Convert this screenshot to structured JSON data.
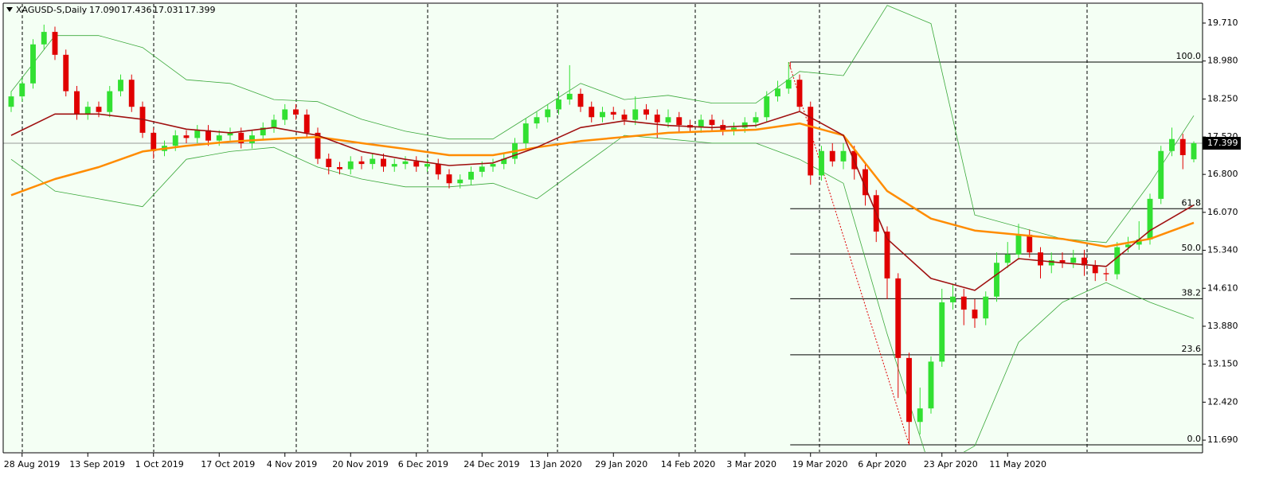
{
  "chart_data": {
    "type": "candlestick",
    "header": {
      "symbol": "XAGUSD-S,Daily",
      "ohlc": [
        "17.090",
        "17.436",
        "17.031",
        "17.399"
      ]
    },
    "categories": [
      null,
      "28 Aug 2019",
      null,
      null,
      null,
      null,
      null,
      "13 Sep 2019",
      null,
      null,
      null,
      null,
      null,
      "1 Oct 2019",
      null,
      null,
      null,
      null,
      null,
      "17 Oct 2019",
      null,
      null,
      null,
      null,
      null,
      "4 Nov 2019",
      null,
      null,
      null,
      null,
      null,
      "20 Nov 2019",
      null,
      null,
      null,
      null,
      null,
      "6 Dec 2019",
      null,
      null,
      null,
      null,
      null,
      "24 Dec 2019",
      null,
      null,
      null,
      null,
      null,
      "13 Jan 2020",
      null,
      null,
      null,
      null,
      null,
      "29 Jan 2020",
      null,
      null,
      null,
      null,
      null,
      "14 Feb 2020",
      null,
      null,
      null,
      null,
      null,
      "3 Mar 2020",
      null,
      null,
      null,
      null,
      null,
      "19 Mar 2020",
      null,
      null,
      null,
      null,
      null,
      "6 Apr 2020",
      null,
      null,
      null,
      null,
      null,
      "23 Apr 2020",
      null,
      null,
      null,
      null,
      null,
      "11 May 2020",
      null,
      null,
      null,
      null,
      null,
      null,
      null,
      null,
      null,
      null,
      null,
      null,
      null,
      null,
      null,
      null,
      null
    ],
    "candles": {
      "open": [
        18.1,
        18.3,
        18.55,
        19.3,
        19.54,
        19.1,
        18.4,
        17.95,
        18.1,
        18.0,
        18.4,
        18.62,
        18.1,
        17.6,
        17.25,
        17.35,
        17.55,
        17.5,
        17.65,
        17.45,
        17.55,
        17.6,
        17.4,
        17.55,
        17.7,
        17.85,
        18.05,
        17.95,
        17.6,
        17.1,
        16.94,
        16.9,
        17.05,
        17.0,
        17.1,
        16.95,
        17.0,
        17.05,
        16.95,
        17.0,
        16.8,
        16.63,
        16.7,
        16.85,
        16.95,
        17.0,
        17.1,
        17.4,
        17.78,
        17.9,
        18.05,
        18.24,
        18.35,
        18.1,
        17.9,
        18.0,
        17.95,
        17.85,
        18.05,
        17.95,
        17.8,
        17.9,
        17.75,
        17.7,
        17.85,
        17.75,
        17.65,
        17.7,
        17.8,
        17.9,
        18.3,
        18.45,
        18.62,
        18.1,
        16.78,
        17.25,
        17.05,
        17.25,
        16.9,
        16.4,
        15.7,
        14.8,
        13.27,
        12.04,
        12.3,
        13.2,
        14.34,
        14.45,
        14.2,
        14.03,
        14.45,
        15.1,
        15.26,
        15.64,
        15.3,
        15.05,
        15.15,
        15.1,
        15.2,
        15.05,
        14.9,
        14.88,
        15.4,
        15.45,
        15.55,
        16.33,
        17.25,
        17.48,
        17.09
      ],
      "high": [
        18.4,
        18.65,
        19.4,
        19.68,
        19.64,
        19.2,
        18.5,
        18.2,
        18.2,
        18.5,
        18.72,
        18.72,
        18.2,
        17.7,
        17.45,
        17.65,
        17.65,
        17.75,
        17.75,
        17.65,
        17.7,
        17.7,
        17.65,
        17.8,
        17.95,
        18.15,
        18.15,
        18.05,
        17.7,
        17.2,
        17.04,
        17.15,
        17.15,
        17.2,
        17.2,
        17.1,
        17.15,
        17.15,
        17.1,
        17.1,
        16.9,
        16.8,
        16.95,
        17.05,
        17.1,
        17.2,
        17.5,
        17.88,
        18.0,
        18.15,
        18.4,
        18.9,
        18.45,
        18.2,
        18.1,
        18.1,
        18.05,
        18.3,
        18.15,
        18.05,
        18.05,
        18.0,
        17.85,
        17.95,
        17.95,
        17.85,
        17.8,
        17.9,
        18.0,
        18.4,
        18.6,
        18.96,
        18.72,
        18.2,
        17.35,
        17.4,
        17.4,
        17.35,
        17.0,
        16.5,
        15.8,
        14.9,
        13.37,
        12.7,
        13.3,
        14.6,
        14.7,
        14.6,
        14.4,
        14.55,
        15.3,
        15.5,
        15.85,
        15.74,
        15.4,
        15.3,
        15.3,
        15.35,
        15.35,
        15.15,
        15.0,
        15.5,
        15.6,
        15.9,
        16.43,
        17.35,
        17.7,
        17.58,
        17.436
      ],
      "low": [
        18.0,
        18.2,
        18.45,
        19.2,
        19.0,
        18.3,
        17.85,
        17.85,
        17.9,
        17.9,
        18.3,
        18.0,
        17.5,
        17.1,
        17.15,
        17.25,
        17.4,
        17.4,
        17.35,
        17.35,
        17.45,
        17.3,
        17.3,
        17.45,
        17.6,
        17.75,
        17.85,
        17.5,
        17.0,
        16.8,
        16.8,
        16.8,
        16.9,
        16.9,
        16.85,
        16.85,
        16.9,
        16.85,
        16.85,
        16.7,
        16.53,
        16.53,
        16.6,
        16.75,
        16.85,
        16.9,
        17.0,
        17.3,
        17.68,
        17.8,
        17.95,
        18.14,
        18.0,
        17.8,
        17.8,
        17.85,
        17.75,
        17.75,
        17.85,
        17.5,
        17.7,
        17.6,
        17.6,
        17.6,
        17.65,
        17.55,
        17.55,
        17.6,
        17.7,
        17.8,
        18.2,
        18.35,
        18.0,
        16.6,
        16.68,
        16.95,
        16.9,
        16.7,
        16.2,
        15.5,
        14.4,
        12.5,
        11.6,
        11.8,
        12.2,
        13.1,
        14.2,
        13.9,
        13.85,
        13.9,
        14.35,
        15.0,
        15.16,
        15.2,
        14.8,
        14.9,
        15.0,
        15.0,
        14.85,
        14.75,
        14.75,
        14.78,
        15.3,
        15.35,
        15.45,
        16.23,
        17.15,
        16.9,
        17.031
      ],
      "close": [
        18.3,
        18.55,
        19.3,
        19.54,
        19.1,
        18.4,
        17.95,
        18.1,
        18.0,
        18.4,
        18.62,
        18.1,
        17.6,
        17.25,
        17.35,
        17.55,
        17.5,
        17.65,
        17.45,
        17.55,
        17.6,
        17.4,
        17.55,
        17.7,
        17.85,
        18.05,
        17.95,
        17.6,
        17.1,
        16.94,
        16.9,
        17.05,
        17.0,
        17.1,
        16.95,
        17.0,
        17.05,
        16.95,
        17.0,
        16.8,
        16.63,
        16.7,
        16.85,
        16.95,
        17.0,
        17.1,
        17.4,
        17.78,
        17.9,
        18.05,
        18.24,
        18.35,
        18.1,
        17.9,
        18.0,
        17.95,
        17.85,
        18.05,
        17.95,
        17.8,
        17.9,
        17.75,
        17.7,
        17.85,
        17.75,
        17.65,
        17.7,
        17.8,
        17.9,
        18.3,
        18.45,
        18.62,
        18.1,
        16.78,
        17.25,
        17.05,
        17.25,
        16.9,
        16.4,
        15.7,
        14.8,
        13.27,
        12.04,
        12.3,
        13.2,
        14.34,
        14.45,
        14.2,
        14.03,
        14.45,
        15.1,
        15.26,
        15.64,
        15.3,
        15.05,
        15.15,
        15.1,
        15.2,
        15.05,
        14.9,
        14.88,
        15.4,
        15.45,
        15.55,
        16.33,
        17.25,
        17.48,
        17.17,
        17.399
      ],
      "up_color": "#32e032",
      "down_color": "#e00000"
    },
    "indicators": [
      {
        "color": "#3aa83a",
        "width": 0.8,
        "x": [
          0,
          4,
          8,
          12,
          16,
          20,
          24,
          28,
          32,
          36,
          40,
          44,
          48,
          52,
          56,
          60,
          64,
          68,
          72,
          76,
          80,
          84,
          88,
          92,
          96,
          100,
          104,
          108
        ],
        "values": [
          18.39,
          19.47,
          19.47,
          19.24,
          18.62,
          18.55,
          18.24,
          18.2,
          17.86,
          17.63,
          17.48,
          17.48,
          18.01,
          18.55,
          18.24,
          18.32,
          18.17,
          18.17,
          18.78,
          18.7,
          20.05,
          19.7,
          16.02,
          15.79,
          15.56,
          15.49,
          16.63,
          17.93
        ]
      },
      {
        "color": "#3aa83a",
        "width": 0.8,
        "x": [
          0,
          4,
          8,
          12,
          16,
          20,
          24,
          28,
          32,
          36,
          40,
          44,
          48,
          52,
          56,
          60,
          64,
          68,
          72,
          76,
          80,
          84,
          88,
          92,
          96,
          100,
          104,
          108
        ],
        "values": [
          17.09,
          16.48,
          16.33,
          16.18,
          17.09,
          17.24,
          17.32,
          16.94,
          16.71,
          16.56,
          16.56,
          16.63,
          16.33,
          16.94,
          17.55,
          17.48,
          17.4,
          17.4,
          17.09,
          16.63,
          13.73,
          11.1,
          11.58,
          13.57,
          14.34,
          14.72,
          14.34,
          14.03
        ]
      },
      {
        "color": "#ff8c00",
        "width": 2.5,
        "x": [
          0,
          4,
          8,
          12,
          16,
          20,
          24,
          28,
          32,
          36,
          40,
          44,
          48,
          52,
          56,
          60,
          64,
          68,
          72,
          76,
          80,
          84,
          88,
          92,
          96,
          100,
          104,
          108
        ],
        "values": [
          16.4,
          16.71,
          16.94,
          17.24,
          17.35,
          17.43,
          17.48,
          17.52,
          17.4,
          17.29,
          17.17,
          17.17,
          17.32,
          17.44,
          17.52,
          17.6,
          17.63,
          17.66,
          17.78,
          17.55,
          16.48,
          15.95,
          15.72,
          15.64,
          15.56,
          15.41,
          15.56,
          15.87
        ]
      },
      {
        "color": "#a01010",
        "width": 1.6,
        "x": [
          0,
          4,
          8,
          12,
          16,
          20,
          24,
          28,
          32,
          36,
          40,
          44,
          48,
          52,
          56,
          60,
          64,
          68,
          72,
          76,
          80,
          84,
          88,
          92,
          96,
          100,
          104,
          108
        ],
        "values": [
          17.55,
          17.96,
          17.96,
          17.86,
          17.67,
          17.6,
          17.7,
          17.55,
          17.24,
          17.09,
          16.97,
          17.02,
          17.32,
          17.7,
          17.83,
          17.74,
          17.7,
          17.74,
          18.01,
          17.55,
          15.56,
          14.8,
          14.57,
          15.18,
          15.1,
          15.03,
          15.72,
          16.21
        ]
      }
    ],
    "fibonacci": [
      {
        "label": "100.0",
        "price": 18.96
      },
      {
        "label": "61.8",
        "price": 16.14
      },
      {
        "label": "50.0",
        "price": 15.27
      },
      {
        "label": "38.2",
        "price": 14.41
      },
      {
        "label": "23.6",
        "price": 13.33
      },
      {
        "label": "0.0",
        "price": 11.6
      }
    ],
    "last_price": {
      "value": 17.399,
      "label": "17.399"
    },
    "ylim": [
      11.462,
      20.077
    ],
    "yticks": [
      {
        "value": 19.71,
        "label": "19.710"
      },
      {
        "value": 18.98,
        "label": "18.980"
      },
      {
        "value": 18.25,
        "label": "18.250"
      },
      {
        "value": 17.52,
        "label": "17.520"
      },
      {
        "value": 16.8,
        "label": "16.800"
      },
      {
        "value": 16.07,
        "label": "16.070"
      },
      {
        "value": 15.34,
        "label": "15.340"
      },
      {
        "value": 14.61,
        "label": "14.610"
      },
      {
        "value": 13.88,
        "label": "13.880"
      },
      {
        "value": 13.15,
        "label": "13.150"
      },
      {
        "value": 12.42,
        "label": "12.420"
      },
      {
        "value": 11.69,
        "label": "11.690"
      }
    ]
  }
}
